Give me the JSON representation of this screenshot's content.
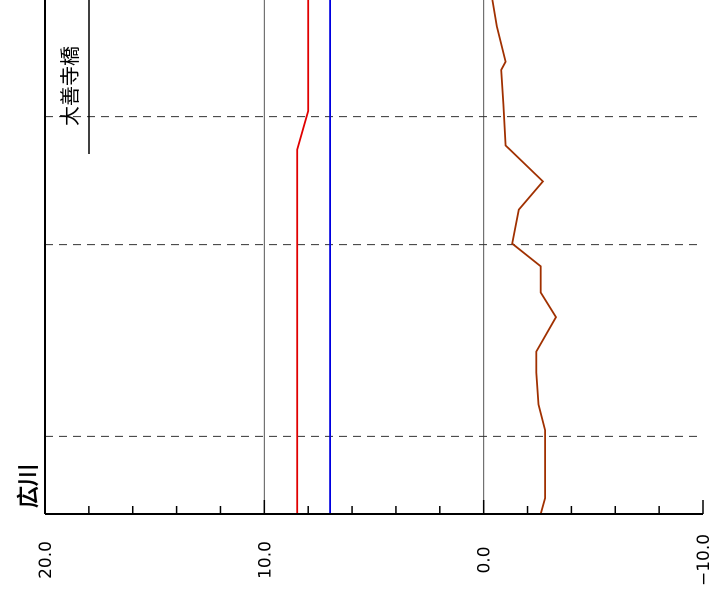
{
  "chart_data": {
    "type": "line",
    "orientation": "rotated-90",
    "title": "広川",
    "annotation": "大善寺橋",
    "value_axis": {
      "min": -10,
      "max": 20,
      "ticks": [
        20.0,
        10.0,
        0.0,
        -10.0
      ],
      "tick_labels": [
        "20.0",
        "10.0",
        "0.0",
        "−10.0"
      ],
      "minor_step": 2
    },
    "position_axis": {
      "min": 0,
      "max": 100,
      "reference_positions": [
        15.1,
        52.4,
        77.3
      ]
    },
    "grid": true,
    "series": [
      {
        "color": "#e00000",
        "points": [
          [
            0,
            8.5
          ],
          [
            70.9,
            8.5
          ],
          [
            78.4,
            8.0
          ],
          [
            100,
            8.0
          ]
        ]
      },
      {
        "color": "#0000e0",
        "points": [
          [
            0,
            7.0
          ],
          [
            100,
            7.0
          ]
        ]
      },
      {
        "color": "#a03000",
        "points": [
          [
            0,
            -2.6
          ],
          [
            3.1,
            -2.8
          ],
          [
            8.5,
            -2.8
          ],
          [
            16.3,
            -2.8
          ],
          [
            21.3,
            -2.5
          ],
          [
            27.5,
            -2.4
          ],
          [
            31.6,
            -2.4
          ],
          [
            38.3,
            -3.3
          ],
          [
            43.1,
            -2.6
          ],
          [
            48.2,
            -2.6
          ],
          [
            52.6,
            -1.3
          ],
          [
            59.2,
            -1.6
          ],
          [
            64.7,
            -2.7
          ],
          [
            71.7,
            -1.0
          ],
          [
            79.7,
            -0.9
          ],
          [
            86.4,
            -0.8
          ],
          [
            88.0,
            -1.0
          ],
          [
            94.9,
            -0.6
          ],
          [
            100,
            -0.4
          ]
        ]
      }
    ]
  }
}
